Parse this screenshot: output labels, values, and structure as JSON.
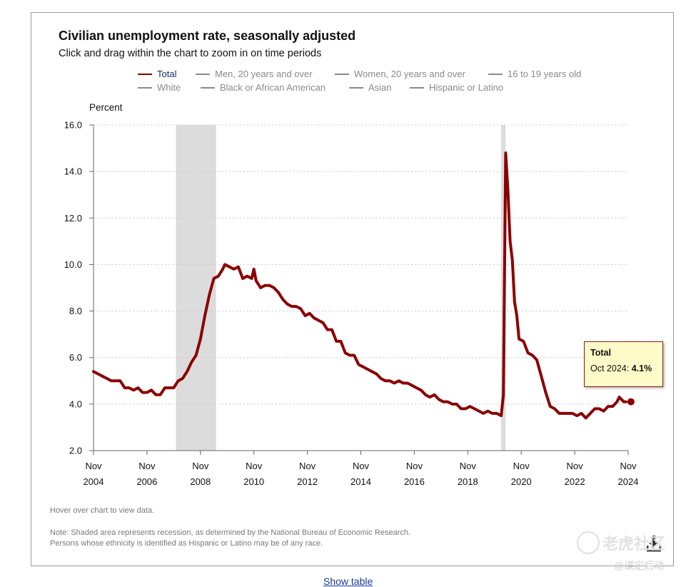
{
  "title": "Civilian unemployment rate, seasonally adjusted",
  "subtitle": "Click and drag within the chart to zoom in on time periods",
  "legend": {
    "row1": [
      "Total",
      "Men, 20 years and over",
      "Women, 20 years and over",
      "16 to 19 years old"
    ],
    "row2": [
      "White",
      "Black or African American",
      "Asian",
      "Hispanic or Latino"
    ]
  },
  "tooltip": {
    "title": "Total",
    "label": "Oct 2024: ",
    "value": "4.1%"
  },
  "hover_note": "Hover over chart to view data.",
  "note_line1": "Note: Shaded area represents recession, as determined by the National Bureau of Economic Research.",
  "note_line2": "Persons whose ethnicity is identified as Hispanic or Latino may be of any race.",
  "show_table": "Show table",
  "watermark": {
    "line1": "老虎社区",
    "line2": "@谋定后动"
  },
  "colors": {
    "series": "#8b0000",
    "recession": "#dcdcdc",
    "legend_inactive": "#8a8a8a",
    "tooltip_bg": "#fffbc8"
  },
  "chart_data": {
    "type": "line",
    "ylabel": "Percent",
    "xlabel": "",
    "ylim": [
      2.0,
      16.0
    ],
    "yticks": [
      "2.0",
      "4.0",
      "6.0",
      "8.0",
      "10.0",
      "12.0",
      "14.0",
      "16.0"
    ],
    "xticks": [
      {
        "month": "Nov",
        "year": "2004"
      },
      {
        "month": "Nov",
        "year": "2006"
      },
      {
        "month": "Nov",
        "year": "2008"
      },
      {
        "month": "Nov",
        "year": "2010"
      },
      {
        "month": "Nov",
        "year": "2012"
      },
      {
        "month": "Nov",
        "year": "2014"
      },
      {
        "month": "Nov",
        "year": "2016"
      },
      {
        "month": "Nov",
        "year": "2018"
      },
      {
        "month": "Nov",
        "year": "2020"
      },
      {
        "month": "Nov",
        "year": "2022"
      },
      {
        "month": "Nov",
        "year": "2024"
      }
    ],
    "xlim": [
      "2004-11",
      "2024-11"
    ],
    "grid": true,
    "legend_position": "top",
    "recessions": [
      [
        "2007-12",
        "2009-06"
      ],
      [
        "2020-02",
        "2020-04"
      ]
    ],
    "series": [
      {
        "name": "Total",
        "points": [
          [
            "2004-11",
            5.4
          ],
          [
            "2005-01",
            5.3
          ],
          [
            "2005-03",
            5.2
          ],
          [
            "2005-05",
            5.1
          ],
          [
            "2005-07",
            5.0
          ],
          [
            "2005-09",
            5.0
          ],
          [
            "2005-11",
            5.0
          ],
          [
            "2006-01",
            4.7
          ],
          [
            "2006-03",
            4.7
          ],
          [
            "2006-05",
            4.6
          ],
          [
            "2006-07",
            4.7
          ],
          [
            "2006-09",
            4.5
          ],
          [
            "2006-11",
            4.5
          ],
          [
            "2007-01",
            4.6
          ],
          [
            "2007-03",
            4.4
          ],
          [
            "2007-05",
            4.4
          ],
          [
            "2007-07",
            4.7
          ],
          [
            "2007-09",
            4.7
          ],
          [
            "2007-11",
            4.7
          ],
          [
            "2008-01",
            5.0
          ],
          [
            "2008-03",
            5.1
          ],
          [
            "2008-05",
            5.4
          ],
          [
            "2008-07",
            5.8
          ],
          [
            "2008-09",
            6.1
          ],
          [
            "2008-11",
            6.8
          ],
          [
            "2009-01",
            7.8
          ],
          [
            "2009-03",
            8.7
          ],
          [
            "2009-05",
            9.4
          ],
          [
            "2009-07",
            9.5
          ],
          [
            "2009-09",
            9.8
          ],
          [
            "2009-10",
            10.0
          ],
          [
            "2009-12",
            9.9
          ],
          [
            "2010-02",
            9.8
          ],
          [
            "2010-04",
            9.9
          ],
          [
            "2010-06",
            9.4
          ],
          [
            "2010-08",
            9.5
          ],
          [
            "2010-10",
            9.4
          ],
          [
            "2010-11",
            9.8
          ],
          [
            "2010-12",
            9.3
          ],
          [
            "2011-02",
            9.0
          ],
          [
            "2011-04",
            9.1
          ],
          [
            "2011-06",
            9.1
          ],
          [
            "2011-08",
            9.0
          ],
          [
            "2011-10",
            8.8
          ],
          [
            "2011-12",
            8.5
          ],
          [
            "2012-02",
            8.3
          ],
          [
            "2012-04",
            8.2
          ],
          [
            "2012-06",
            8.2
          ],
          [
            "2012-08",
            8.1
          ],
          [
            "2012-10",
            7.8
          ],
          [
            "2012-12",
            7.9
          ],
          [
            "2013-02",
            7.7
          ],
          [
            "2013-04",
            7.6
          ],
          [
            "2013-06",
            7.5
          ],
          [
            "2013-08",
            7.2
          ],
          [
            "2013-10",
            7.2
          ],
          [
            "2013-12",
            6.7
          ],
          [
            "2014-02",
            6.7
          ],
          [
            "2014-04",
            6.2
          ],
          [
            "2014-06",
            6.1
          ],
          [
            "2014-08",
            6.1
          ],
          [
            "2014-10",
            5.7
          ],
          [
            "2014-12",
            5.6
          ],
          [
            "2015-02",
            5.5
          ],
          [
            "2015-04",
            5.4
          ],
          [
            "2015-06",
            5.3
          ],
          [
            "2015-08",
            5.1
          ],
          [
            "2015-10",
            5.0
          ],
          [
            "2015-12",
            5.0
          ],
          [
            "2016-02",
            4.9
          ],
          [
            "2016-04",
            5.0
          ],
          [
            "2016-06",
            4.9
          ],
          [
            "2016-08",
            4.9
          ],
          [
            "2016-10",
            4.8
          ],
          [
            "2016-12",
            4.7
          ],
          [
            "2017-02",
            4.6
          ],
          [
            "2017-04",
            4.4
          ],
          [
            "2017-06",
            4.3
          ],
          [
            "2017-08",
            4.4
          ],
          [
            "2017-10",
            4.2
          ],
          [
            "2017-12",
            4.1
          ],
          [
            "2018-02",
            4.1
          ],
          [
            "2018-04",
            4.0
          ],
          [
            "2018-06",
            4.0
          ],
          [
            "2018-08",
            3.8
          ],
          [
            "2018-10",
            3.8
          ],
          [
            "2018-12",
            3.9
          ],
          [
            "2019-02",
            3.8
          ],
          [
            "2019-04",
            3.7
          ],
          [
            "2019-06",
            3.6
          ],
          [
            "2019-08",
            3.7
          ],
          [
            "2019-10",
            3.6
          ],
          [
            "2019-12",
            3.6
          ],
          [
            "2020-02",
            3.5
          ],
          [
            "2020-03",
            4.4
          ],
          [
            "2020-04",
            14.8
          ],
          [
            "2020-05",
            13.2
          ],
          [
            "2020-06",
            11.0
          ],
          [
            "2020-07",
            10.2
          ],
          [
            "2020-08",
            8.4
          ],
          [
            "2020-09",
            7.8
          ],
          [
            "2020-10",
            6.8
          ],
          [
            "2020-12",
            6.7
          ],
          [
            "2021-02",
            6.2
          ],
          [
            "2021-04",
            6.1
          ],
          [
            "2021-06",
            5.9
          ],
          [
            "2021-08",
            5.2
          ],
          [
            "2021-10",
            4.5
          ],
          [
            "2021-12",
            3.9
          ],
          [
            "2022-02",
            3.8
          ],
          [
            "2022-04",
            3.6
          ],
          [
            "2022-06",
            3.6
          ],
          [
            "2022-08",
            3.6
          ],
          [
            "2022-10",
            3.6
          ],
          [
            "2022-12",
            3.5
          ],
          [
            "2023-02",
            3.6
          ],
          [
            "2023-04",
            3.4
          ],
          [
            "2023-06",
            3.6
          ],
          [
            "2023-08",
            3.8
          ],
          [
            "2023-10",
            3.8
          ],
          [
            "2023-12",
            3.7
          ],
          [
            "2024-02",
            3.9
          ],
          [
            "2024-04",
            3.9
          ],
          [
            "2024-06",
            4.1
          ],
          [
            "2024-07",
            4.3
          ],
          [
            "2024-08",
            4.2
          ],
          [
            "2024-09",
            4.1
          ],
          [
            "2024-10",
            4.1
          ]
        ]
      }
    ],
    "highlight_point": [
      "2024-10",
      4.1
    ]
  }
}
